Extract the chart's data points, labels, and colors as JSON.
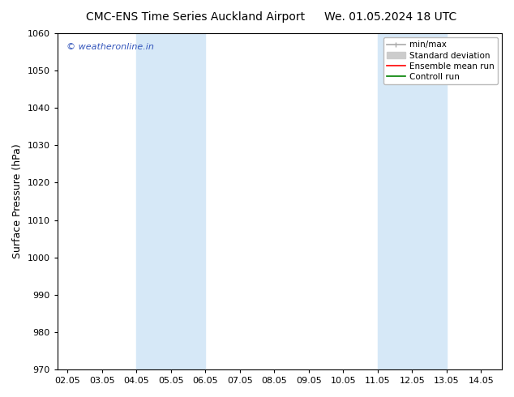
{
  "title_left": "CMC-ENS Time Series Auckland Airport",
  "title_right": "We. 01.05.2024 18 UTC",
  "ylabel": "Surface Pressure (hPa)",
  "xlim": [
    1.7,
    14.6
  ],
  "ylim": [
    970,
    1060
  ],
  "yticks": [
    970,
    980,
    990,
    1000,
    1010,
    1020,
    1030,
    1040,
    1050,
    1060
  ],
  "xtick_labels": [
    "02.05",
    "03.05",
    "04.05",
    "05.05",
    "06.05",
    "07.05",
    "08.05",
    "09.05",
    "10.05",
    "11.05",
    "12.05",
    "13.05",
    "14.05"
  ],
  "xtick_positions": [
    2,
    3,
    4,
    5,
    6,
    7,
    8,
    9,
    10,
    11,
    12,
    13,
    14
  ],
  "shaded_bands": [
    {
      "x_start": 4.0,
      "x_end": 5.0,
      "color": "#d6e8f7"
    },
    {
      "x_start": 5.0,
      "x_end": 6.0,
      "color": "#d6e8f7"
    },
    {
      "x_start": 11.0,
      "x_end": 12.0,
      "color": "#d6e8f7"
    },
    {
      "x_start": 12.0,
      "x_end": 13.0,
      "color": "#d6e8f7"
    }
  ],
  "legend_items": [
    {
      "label": "min/max",
      "color": "#aaaaaa",
      "linestyle": "-",
      "linewidth": 1.2
    },
    {
      "label": "Standard deviation",
      "color": "#cccccc",
      "linestyle": "-",
      "linewidth": 6
    },
    {
      "label": "Ensemble mean run",
      "color": "#ff0000",
      "linestyle": "-",
      "linewidth": 1.2
    },
    {
      "label": "Controll run",
      "color": "#008000",
      "linestyle": "-",
      "linewidth": 1.2
    }
  ],
  "watermark_text": "© weatheronline.in",
  "watermark_color": "#3355bb",
  "bg_color": "#ffffff",
  "title_fontsize": 10,
  "tick_fontsize": 8,
  "ylabel_fontsize": 9
}
